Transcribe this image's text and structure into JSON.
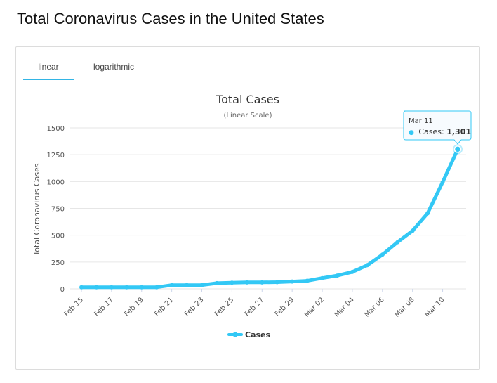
{
  "page": {
    "title": "Total Coronavirus Cases in the United States"
  },
  "tabs": [
    {
      "label": "linear",
      "active": true
    },
    {
      "label": "logarithmic",
      "active": false
    }
  ],
  "colors": {
    "series": "#33c8f5",
    "tab_underline": "#33b5e5",
    "grid": "#e6e6e6"
  },
  "legend": {
    "icon": "series-marker-icon",
    "label": "Cases"
  },
  "tooltip": {
    "date": "Mar 11",
    "bullet": "●",
    "series": "Cases: ",
    "value": "1,301"
  },
  "chart_data": {
    "type": "line",
    "title": "Total Cases",
    "subtitle": "(Linear Scale)",
    "xlabel": "",
    "ylabel": "Total Coronavirus Cases",
    "ylim": [
      0,
      1500
    ],
    "yticks": [
      "0",
      "250",
      "500",
      "750",
      "1000",
      "1250",
      "1500"
    ],
    "xticks": [
      "Feb 15",
      "Feb 17",
      "Feb 19",
      "Feb 21",
      "Feb 23",
      "Feb 25",
      "Feb 27",
      "Feb 29",
      "Mar 02",
      "Mar 04",
      "Mar 06",
      "Mar 08",
      "Mar 10"
    ],
    "categories": [
      "Feb 15",
      "Feb 16",
      "Feb 17",
      "Feb 18",
      "Feb 19",
      "Feb 20",
      "Feb 21",
      "Feb 22",
      "Feb 23",
      "Feb 24",
      "Feb 25",
      "Feb 26",
      "Feb 27",
      "Feb 28",
      "Feb 29",
      "Mar 01",
      "Mar 02",
      "Mar 03",
      "Mar 04",
      "Mar 05",
      "Mar 06",
      "Mar 07",
      "Mar 08",
      "Mar 09",
      "Mar 10",
      "Mar 11"
    ],
    "series": [
      {
        "name": "Cases",
        "values": [
          15,
          15,
          15,
          15,
          15,
          15,
          35,
          35,
          35,
          53,
          57,
          60,
          60,
          62,
          68,
          75,
          100,
          124,
          158,
          221,
          319,
          435,
          541,
          704,
          994,
          1301
        ]
      }
    ],
    "legend": "bottom-center",
    "grid": true
  }
}
